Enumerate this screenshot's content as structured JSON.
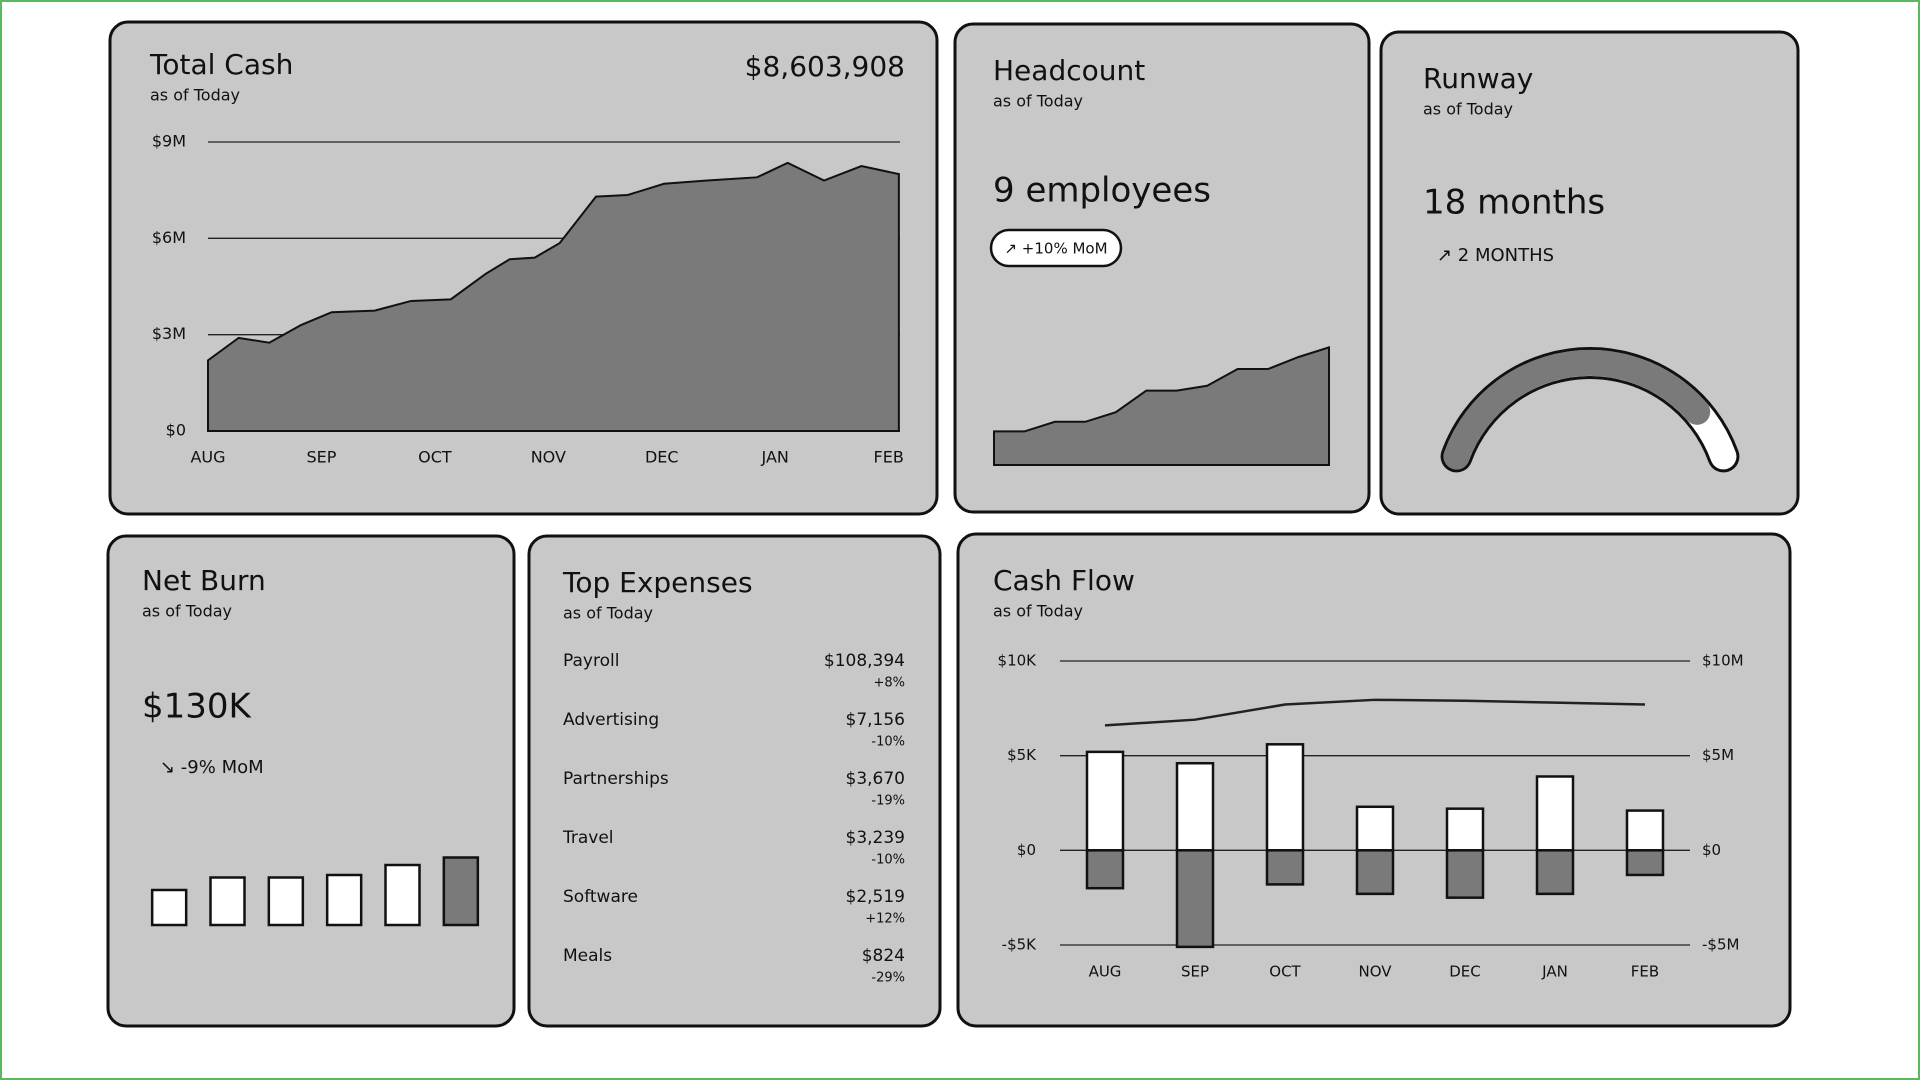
{
  "chart_data": [
    {
      "type": "area",
      "title": "Total Cash",
      "subtitle": "as of Today",
      "headline": "$8,603,908",
      "x": [
        0,
        0.27,
        0.54,
        0.82,
        1.09,
        1.47,
        1.79,
        2.14,
        2.45,
        2.66,
        2.88,
        3.1,
        3.42,
        3.7,
        4.02,
        4.4,
        4.84,
        5.11,
        5.43,
        5.76,
        6.09
      ],
      "values": [
        2200000,
        2900000,
        2750000,
        3300000,
        3700000,
        3750000,
        4050000,
        4100000,
        4900000,
        5350000,
        5400000,
        5850000,
        7300000,
        7350000,
        7700000,
        7800000,
        7900000,
        8350000,
        7800000,
        8250000,
        8000000
      ],
      "xlim": [
        0,
        6.1
      ],
      "xticks": [
        {
          "value": 0,
          "label": "AUG"
        },
        {
          "value": 1,
          "label": "SEP"
        },
        {
          "value": 2,
          "label": "OCT"
        },
        {
          "value": 3,
          "label": "NOV"
        },
        {
          "value": 4,
          "label": "DEC"
        },
        {
          "value": 5,
          "label": "JAN"
        },
        {
          "value": 6,
          "label": "FEB"
        }
      ],
      "ylim": [
        0,
        9000000
      ],
      "yticks": [
        {
          "value": 0,
          "label": "$0"
        },
        {
          "value": 3000000,
          "label": "$3M"
        },
        {
          "value": 6000000,
          "label": "$6M"
        },
        {
          "value": 9000000,
          "label": "$9M"
        }
      ],
      "grid": true,
      "color": "#7a7a7a"
    },
    {
      "type": "area",
      "title": "Headcount",
      "subtitle": "as of Today",
      "kpi": "9 employees",
      "badge": "↗ +10% MoM",
      "values": [
        28,
        28,
        36,
        36,
        44,
        62,
        62,
        66,
        80,
        80,
        90,
        98
      ],
      "ylim": [
        0,
        100
      ],
      "color": "#7a7a7a"
    },
    {
      "type": "gauge",
      "title": "Runway",
      "subtitle": "as of Today",
      "kpi": "18 months",
      "change": "↗ 2 MONTHS",
      "value": 85,
      "ylim": [
        0,
        100
      ],
      "color": "#7a7a7a"
    },
    {
      "type": "bar",
      "title": "Net Burn",
      "subtitle": "as of Today",
      "kpi": "$130K",
      "change": "↘ -9% MoM",
      "values": [
        28,
        38,
        38,
        40,
        48,
        54
      ],
      "colors": [
        "#ffffff",
        "#ffffff",
        "#ffffff",
        "#ffffff",
        "#ffffff",
        "#7a7a7a"
      ],
      "ylim": [
        0,
        60
      ]
    },
    {
      "type": "combo",
      "title": "Cash Flow",
      "subtitle": "as of Today",
      "categories": [
        "AUG",
        "SEP",
        "OCT",
        "NOV",
        "DEC",
        "JAN",
        "FEB"
      ],
      "series": [
        {
          "color": "#ffffff",
          "values": [
            5200,
            4600,
            5600,
            2300,
            2200,
            3900,
            2100
          ]
        },
        {
          "color": "#7a7a7a",
          "values": [
            -2000,
            -5100,
            -1800,
            -2300,
            -2500,
            -2300,
            -1300
          ]
        },
        {
          "type": "line",
          "axis": "y2",
          "color": "#222222",
          "values": [
            6600000,
            6900000,
            7700000,
            7950000,
            7900000,
            7800000,
            7700000
          ]
        }
      ],
      "ylim": [
        -5000,
        10000
      ],
      "yticks": [
        {
          "value": -5000,
          "label": "-$5K"
        },
        {
          "value": 0,
          "label": "$0"
        },
        {
          "value": 5000,
          "label": "$5K"
        },
        {
          "value": 10000,
          "label": "$10K"
        }
      ],
      "y2lim": [
        -5000000,
        10000000
      ],
      "y2ticks": [
        {
          "value": -5000000,
          "label": "-$5M"
        },
        {
          "value": 0,
          "label": "$0"
        },
        {
          "value": 5000000,
          "label": "$5M"
        },
        {
          "value": 10000000,
          "label": "$10M"
        }
      ],
      "grid": true
    }
  ],
  "top_expenses": {
    "title": "Top Expenses",
    "subtitle": "as of Today",
    "rows": [
      {
        "name": "Payroll",
        "amount": "$108,394",
        "change": "+8%"
      },
      {
        "name": "Advertising",
        "amount": "$7,156",
        "change": "-10%"
      },
      {
        "name": "Partnerships",
        "amount": "$3,670",
        "change": "-19%"
      },
      {
        "name": "Travel",
        "amount": "$3,239",
        "change": "-10%"
      },
      {
        "name": "Software",
        "amount": "$2,519",
        "change": "+12%"
      },
      {
        "name": "Meals",
        "amount": "$824",
        "change": "-29%"
      }
    ]
  }
}
